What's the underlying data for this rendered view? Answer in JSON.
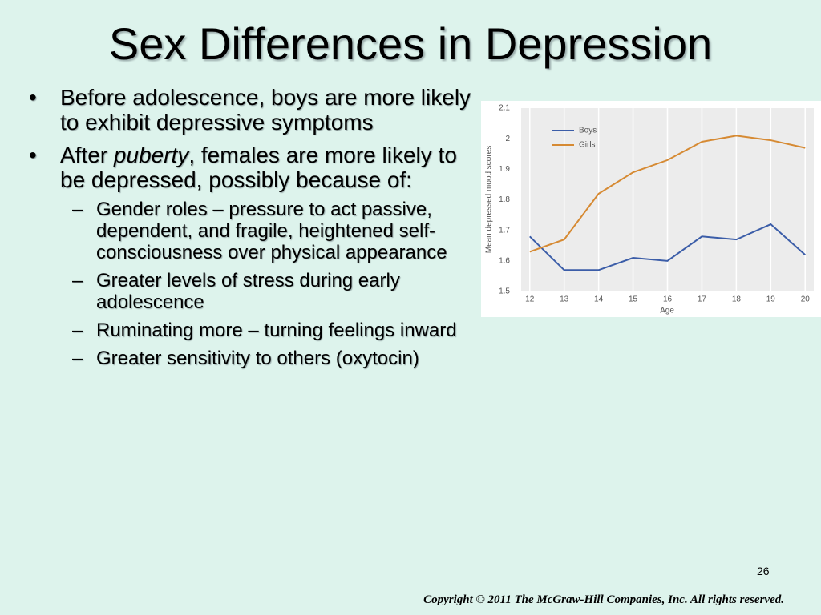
{
  "slide": {
    "title": "Sex Differences in Depression",
    "bullets": [
      {
        "runs": [
          "Before adolescence, boys are more likely to exhibit depressive symptoms"
        ]
      },
      {
        "runs": [
          "After ",
          "puberty",
          ", females are more likely to be depressed, possibly because of:"
        ],
        "sub": [
          "Gender roles – pressure to act passive, dependent, and fragile, heightened self-consciousness over physical appearance",
          "Greater levels of stress during early adolescence",
          "Ruminating more – turning feelings inward",
          "Greater sensitivity to others (oxytocin)"
        ]
      }
    ],
    "page_number": "26",
    "copyright": "Copyright © 2011 The McGraw-Hill Companies, Inc. All rights reserved."
  },
  "chart_data": {
    "type": "line",
    "xlabel": "Age",
    "ylabel": "Mean depressed mood scores",
    "x": [
      12,
      13,
      14,
      15,
      16,
      17,
      18,
      19,
      20
    ],
    "series": [
      {
        "name": "Boys",
        "color": "#3b5da8",
        "values": [
          1.68,
          1.57,
          1.57,
          1.61,
          1.6,
          1.68,
          1.67,
          1.72,
          1.62
        ]
      },
      {
        "name": "Girls",
        "color": "#d68a33",
        "values": [
          1.63,
          1.67,
          1.82,
          1.89,
          1.93,
          1.99,
          2.01,
          1.995,
          1.97
        ]
      }
    ],
    "xlim": [
      11.75,
      20.25
    ],
    "ylim": [
      1.5,
      2.1
    ],
    "xticks": [
      12,
      13,
      14,
      15,
      16,
      17,
      18,
      19,
      20
    ],
    "yticks": [
      1.5,
      1.6,
      1.7,
      1.8,
      1.9,
      2,
      2.1
    ],
    "grid": true,
    "legend": "upper left"
  }
}
